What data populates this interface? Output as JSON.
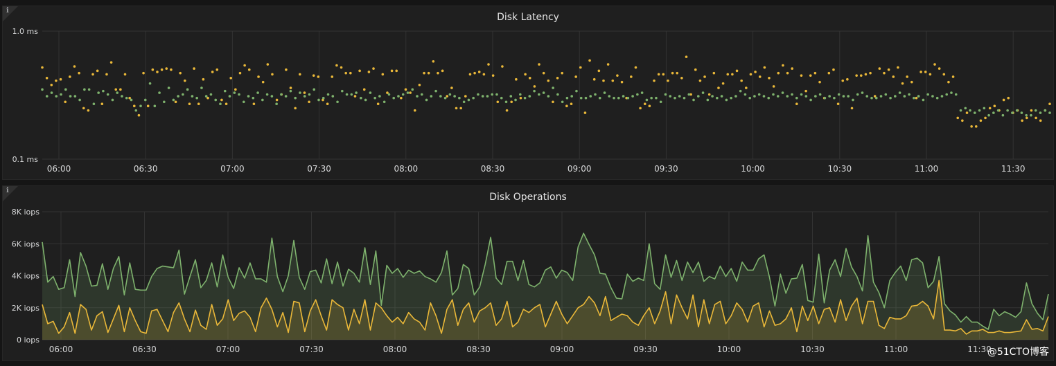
{
  "panels": {
    "latency": {
      "title": "Disk Latency",
      "info_icon": "info-icon"
    },
    "operations": {
      "title": "Disk Operations",
      "info_icon": "info-icon"
    }
  },
  "watermark": "@51CTO博客",
  "colors": {
    "panel_bg": "#1f1f1f",
    "grid": "#333333",
    "tick_text": "#d8d9da",
    "series_green": "#7eb26d",
    "series_yellow": "#eab839"
  },
  "chart_data": [
    {
      "type": "scatter",
      "title": "Disk Latency",
      "x_ticks": [
        "06:00",
        "06:30",
        "07:00",
        "07:30",
        "08:00",
        "08:30",
        "09:00",
        "09:30",
        "10:00",
        "10:30",
        "11:00",
        "11:30"
      ],
      "y_ticks": [
        "1.0 ms",
        "0.1 ms"
      ],
      "y_scale": "log",
      "ylim_ms": [
        0.1,
        1.0
      ],
      "grid": true,
      "legend": "none",
      "series": [
        {
          "color": "#eab839",
          "values_ms": [
            0.52,
            0.43,
            0.38,
            0.41,
            0.42,
            0.28,
            0.44,
            0.53,
            0.47,
            0.25,
            0.24,
            0.46,
            0.49,
            0.27,
            0.46,
            0.57,
            0.35,
            0.35,
            0.46,
            0.3,
            0.26,
            0.22,
            0.47,
            0.26,
            0.5,
            0.48,
            0.5,
            0.51,
            0.5,
            0.28,
            0.47,
            0.41,
            0.27,
            0.51,
            0.27,
            0.42,
            0.3,
            0.48,
            0.5,
            0.29,
            0.27,
            0.43,
            0.35,
            0.47,
            0.54,
            0.5,
            0.27,
            0.44,
            0.4,
            0.55,
            0.46,
            0.29,
            0.32,
            0.5,
            0.36,
            0.25,
            0.46,
            0.33,
            0.28,
            0.45,
            0.44,
            0.29,
            0.27,
            0.44,
            0.54,
            0.52,
            0.47,
            0.47,
            0.31,
            0.49,
            0.35,
            0.48,
            0.51,
            0.27,
            0.46,
            0.33,
            0.49,
            0.49,
            0.3,
            0.35,
            0.33,
            0.24,
            0.38,
            0.47,
            0.47,
            0.58,
            0.47,
            0.49,
            0.31,
            0.36,
            0.25,
            0.25,
            0.31,
            0.46,
            0.47,
            0.48,
            0.46,
            0.55,
            0.45,
            0.28,
            0.53,
            0.24,
            0.28,
            0.42,
            0.3,
            0.46,
            0.43,
            0.37,
            0.55,
            0.47,
            0.41,
            0.28,
            0.43,
            0.47,
            0.26,
            0.27,
            0.44,
            0.52,
            0.23,
            0.59,
            0.42,
            0.49,
            0.41,
            0.55,
            0.41,
            0.45,
            0.4,
            0.3,
            0.44,
            0.52,
            0.25,
            0.27,
            0.26,
            0.41,
            0.46,
            0.46,
            0.41,
            0.47,
            0.47,
            0.43,
            0.63,
            0.32,
            0.5,
            0.41,
            0.44,
            0.32,
            0.47,
            0.36,
            0.39,
            0.46,
            0.46,
            0.49,
            0.41,
            0.36,
            0.46,
            0.48,
            0.44,
            0.52,
            0.43,
            0.37,
            0.47,
            0.54,
            0.47,
            0.51,
            0.27,
            0.45,
            0.34,
            0.45,
            0.47,
            0.4,
            0.3,
            0.47,
            0.5,
            0.27,
            0.41,
            0.42,
            0.25,
            0.45,
            0.45,
            0.46,
            0.47,
            0.31,
            0.51,
            0.47,
            0.5,
            0.44,
            0.52,
            0.39,
            0.44,
            0.4,
            0.3,
            0.48,
            0.48,
            0.46,
            0.55,
            0.51,
            0.46,
            0.4,
            0.44,
            0.21,
            0.2,
            0.23,
            0.18,
            0.18,
            0.2,
            0.21,
            0.25,
            0.26,
            0.24,
            0.29,
            0.3,
            0.23,
            0.24,
            0.2,
            0.21,
            0.24,
            0.21,
            0.2,
            0.24,
            0.27
          ]
        },
        {
          "color": "#7eb26d",
          "values_ms": [
            0.35,
            0.31,
            0.33,
            0.31,
            0.32,
            0.35,
            0.31,
            0.31,
            0.29,
            0.35,
            0.35,
            0.27,
            0.33,
            0.34,
            0.32,
            0.29,
            0.33,
            0.31,
            0.3,
            0.29,
            0.24,
            0.26,
            0.29,
            0.39,
            0.26,
            0.33,
            0.28,
            0.36,
            0.29,
            0.31,
            0.32,
            0.35,
            0.31,
            0.3,
            0.36,
            0.31,
            0.32,
            0.29,
            0.27,
            0.34,
            0.31,
            0.33,
            0.32,
            0.28,
            0.31,
            0.3,
            0.33,
            0.29,
            0.32,
            0.31,
            0.27,
            0.32,
            0.31,
            0.34,
            0.3,
            0.33,
            0.31,
            0.32,
            0.35,
            0.29,
            0.3,
            0.32,
            0.31,
            0.28,
            0.34,
            0.32,
            0.32,
            0.33,
            0.3,
            0.29,
            0.33,
            0.3,
            0.31,
            0.28,
            0.32,
            0.3,
            0.31,
            0.32,
            0.33,
            0.35,
            0.31,
            0.32,
            0.29,
            0.31,
            0.34,
            0.31,
            0.3,
            0.32,
            0.31,
            0.3,
            0.28,
            0.29,
            0.3,
            0.32,
            0.31,
            0.31,
            0.32,
            0.32,
            0.3,
            0.28,
            0.31,
            0.29,
            0.32,
            0.3,
            0.31,
            0.34,
            0.32,
            0.33,
            0.31,
            0.36,
            0.32,
            0.28,
            0.3,
            0.31,
            0.34,
            0.3,
            0.3,
            0.31,
            0.32,
            0.3,
            0.33,
            0.31,
            0.3,
            0.3,
            0.31,
            0.3,
            0.31,
            0.32,
            0.33,
            0.29,
            0.3,
            0.3,
            0.28,
            0.32,
            0.31,
            0.3,
            0.31,
            0.3,
            0.32,
            0.29,
            0.31,
            0.33,
            0.29,
            0.31,
            0.3,
            0.31,
            0.29,
            0.3,
            0.31,
            0.34,
            0.32,
            0.3,
            0.31,
            0.32,
            0.31,
            0.3,
            0.32,
            0.31,
            0.33,
            0.31,
            0.32,
            0.3,
            0.32,
            0.31,
            0.29,
            0.31,
            0.32,
            0.3,
            0.31,
            0.3,
            0.32,
            0.31,
            0.31,
            0.29,
            0.32,
            0.33,
            0.31,
            0.3,
            0.3,
            0.31,
            0.32,
            0.3,
            0.31,
            0.33,
            0.31,
            0.32,
            0.3,
            0.31,
            0.29,
            0.32,
            0.31,
            0.3,
            0.31,
            0.32,
            0.33,
            0.32,
            0.24,
            0.25,
            0.24,
            0.23,
            0.24,
            0.25,
            0.22,
            0.23,
            0.24,
            0.22,
            0.24,
            0.23,
            0.24,
            0.23,
            0.22,
            0.22,
            0.24,
            0.23,
            0.24,
            0.23
          ]
        }
      ]
    },
    {
      "type": "area",
      "title": "Disk Operations",
      "x_ticks": [
        "06:00",
        "06:30",
        "07:00",
        "07:30",
        "08:00",
        "08:30",
        "09:00",
        "09:30",
        "10:00",
        "10:30",
        "11:00",
        "11:30"
      ],
      "y_ticks": [
        "8K iops",
        "6K iops",
        "4K iops",
        "2K iops",
        "0 iops"
      ],
      "ylim": [
        0,
        8000
      ],
      "grid": true,
      "legend": "none",
      "series": [
        {
          "color": "#7eb26d",
          "values": [
            6100,
            3600,
            3950,
            3150,
            3250,
            5000,
            2700,
            5450,
            4600,
            3350,
            3400,
            4750,
            3150,
            4450,
            5200,
            2800,
            4800,
            3150,
            3100,
            3100,
            3950,
            4450,
            4600,
            4550,
            4500,
            5600,
            2850,
            3950,
            5000,
            3250,
            3700,
            4800,
            3300,
            5300,
            3900,
            3200,
            4500,
            3850,
            4800,
            3800,
            3800,
            3600,
            6350,
            3950,
            3000,
            4000,
            6200,
            3900,
            3150,
            4250,
            4350,
            3550,
            5050,
            3500,
            4850,
            3350,
            4400,
            4150,
            3600,
            5750,
            3450,
            5550,
            2150,
            4650,
            4150,
            4450,
            3900,
            4350,
            4150,
            4300,
            3950,
            3800,
            3600,
            4200,
            5550,
            2800,
            3200,
            4700,
            4450,
            2800,
            3300,
            4700,
            6400,
            3850,
            3450,
            4900,
            4900,
            3700,
            4950,
            3450,
            3300,
            3550,
            4350,
            4550,
            3850,
            4350,
            4200,
            3700,
            5800,
            6650,
            5950,
            5300,
            4150,
            4100,
            3250,
            2600,
            2550,
            4100,
            3650,
            3850,
            3700,
            6000,
            3500,
            3150,
            5300,
            3900,
            4950,
            3700,
            4850,
            4200,
            4850,
            3650,
            3950,
            3800,
            4600,
            3950,
            4450,
            3650,
            4850,
            4350,
            4350,
            5050,
            5300,
            3900,
            2100,
            4100,
            2900,
            3800,
            3850,
            4700,
            2450,
            2350,
            5350,
            2300,
            4350,
            5000,
            3950,
            5700,
            4550,
            3950,
            3050,
            6500,
            3600,
            2950,
            2000,
            3700,
            4200,
            4600,
            3700,
            5000,
            5100,
            4800,
            3250,
            3650,
            5200,
            2250,
            1800,
            1550,
            1100,
            1450,
            1100,
            1100,
            850,
            650,
            1900,
            1500,
            1750,
            1600,
            1400,
            1750,
            3550,
            2250,
            1650,
            1250,
            2850
          ]
        },
        {
          "color": "#eab839",
          "values": [
            2200,
            1000,
            1150,
            400,
            800,
            1700,
            400,
            2200,
            1900,
            600,
            1500,
            1750,
            450,
            1300,
            2150,
            500,
            2000,
            1200,
            500,
            400,
            1800,
            1900,
            1200,
            500,
            1700,
            2300,
            1300,
            500,
            1850,
            900,
            650,
            2200,
            900,
            1300,
            2500,
            1200,
            1650,
            1800,
            1400,
            500,
            2000,
            2600,
            1900,
            800,
            1700,
            450,
            2400,
            2300,
            500,
            1800,
            2500,
            1500,
            600,
            2500,
            2200,
            2000,
            600,
            1900,
            1000,
            2500,
            600,
            2300,
            2000,
            1500,
            1100,
            1400,
            1000,
            1700,
            1300,
            1100,
            600,
            2300,
            1500,
            400,
            1900,
            2500,
            900,
            1900,
            2300,
            1100,
            1800,
            2000,
            2300,
            900,
            1300,
            2400,
            800,
            1100,
            1900,
            1700,
            2000,
            2200,
            800,
            1600,
            2400,
            1600,
            1000,
            1500,
            2000,
            2200,
            2700,
            2300,
            1500,
            2700,
            1200,
            1400,
            1600,
            1500,
            1100,
            900,
            1500,
            2000,
            1000,
            1800,
            3000,
            1000,
            2800,
            2000,
            1300,
            2800,
            800,
            2500,
            1000,
            2200,
            2400,
            1000,
            1500,
            2300,
            1900,
            1100,
            2100,
            2300,
            800,
            1800,
            900,
            1000,
            1300,
            2000,
            500,
            2100,
            1200,
            2100,
            1000,
            1900,
            2000,
            1100,
            2500,
            1200,
            2100,
            2600,
            1000,
            2400,
            2400,
            900,
            700,
            1400,
            1300,
            1300,
            1500,
            2100,
            2150,
            2400,
            2100,
            1300,
            3700,
            600,
            600,
            550,
            700,
            350,
            550,
            550,
            650,
            450,
            450,
            550,
            450,
            450,
            500,
            550,
            1250,
            650,
            700,
            550,
            1450
          ]
        }
      ]
    }
  ]
}
